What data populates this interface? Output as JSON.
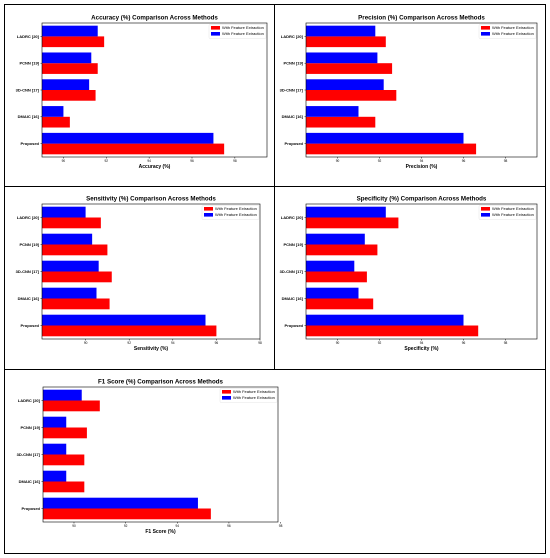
{
  "chart_data": [
    {
      "type": "bar",
      "orientation": "horizontal",
      "title": "Accuracy (%) Comparison Across Methods",
      "xlabel": "Accuracy (%)",
      "ylabel": "",
      "categories": [
        "LADRC [20]",
        "PCNN [19]",
        "3D-CNN [17]",
        "DMAIC [16]",
        "Proposed"
      ],
      "xticks": [
        "90",
        "92",
        "94",
        "96",
        "98"
      ],
      "xlim": [
        89,
        99.5
      ],
      "grid": false,
      "legend_position": "top-right",
      "series": [
        {
          "name": "With Feature Extraction",
          "color": "#ff0000",
          "values": [
            91.9,
            91.6,
            91.5,
            90.3,
            97.5
          ]
        },
        {
          "name": "With Feature Extraction",
          "color": "#0000ff",
          "values": [
            91.6,
            91.3,
            91.2,
            90.0,
            97.0
          ]
        }
      ]
    },
    {
      "type": "bar",
      "orientation": "horizontal",
      "title": "Precision (%) Comparison Across Methods",
      "xlabel": "Precision (%)",
      "ylabel": "",
      "categories": [
        "LADRC [20]",
        "PCNN [19]",
        "3D-CNN [17]",
        "DMAIC [16]",
        "Proposed"
      ],
      "xticks": [
        "90",
        "92",
        "94",
        "96",
        "98"
      ],
      "xlim": [
        88.5,
        99.5
      ],
      "grid": false,
      "legend_position": "top-right",
      "series": [
        {
          "name": "With Feature Extraction",
          "color": "#ff0000",
          "values": [
            92.3,
            92.6,
            92.8,
            91.8,
            96.6
          ]
        },
        {
          "name": "With Feature Extraction",
          "color": "#0000ff",
          "values": [
            91.8,
            91.9,
            92.2,
            91.0,
            96.0
          ]
        }
      ]
    },
    {
      "type": "bar",
      "orientation": "horizontal",
      "title": "Sensitivity (%) Comparison Across Methods",
      "xlabel": "Sensitivity (%)",
      "ylabel": "",
      "categories": [
        "LADRC [20]",
        "PCNN [19]",
        "3D-CNN [17]",
        "DMAIC [16]",
        "Proposed"
      ],
      "xticks": [
        "90",
        "92",
        "94",
        "96",
        "98"
      ],
      "xlim": [
        88,
        98
      ],
      "grid": false,
      "legend_position": "top-right",
      "series": [
        {
          "name": "With Feature Extraction",
          "color": "#ff0000",
          "values": [
            90.7,
            91.0,
            91.2,
            91.1,
            96.0
          ]
        },
        {
          "name": "With Feature Extraction",
          "color": "#0000ff",
          "values": [
            90.0,
            90.3,
            90.6,
            90.5,
            95.5
          ]
        }
      ]
    },
    {
      "type": "bar",
      "orientation": "horizontal",
      "title": "Specificity (%) Comparison Across Methods",
      "xlabel": "Specificity (%)",
      "ylabel": "",
      "categories": [
        "LADRC [20]",
        "PCNN [19]",
        "3D-CNN [17]",
        "DMAIC [16]",
        "Proposed"
      ],
      "xticks": [
        "90",
        "92",
        "94",
        "96",
        "98"
      ],
      "xlim": [
        88.5,
        99.5
      ],
      "grid": false,
      "legend_position": "top-right",
      "series": [
        {
          "name": "With Feature Extraction",
          "color": "#ff0000",
          "values": [
            92.9,
            91.9,
            91.4,
            91.7,
            96.7
          ]
        },
        {
          "name": "With Feature Extraction",
          "color": "#0000ff",
          "values": [
            92.3,
            91.3,
            90.8,
            91.0,
            96.0
          ]
        }
      ]
    },
    {
      "type": "bar",
      "orientation": "horizontal",
      "title": "F1 Score (%) Comparison Across Methods",
      "xlabel": "F1 Score (%)",
      "ylabel": "",
      "categories": [
        "LADRC [20]",
        "PCNN [19]",
        "3D-CNN [17]",
        "DMAIC [16]",
        "Proposed"
      ],
      "xticks": [
        "90",
        "92",
        "94",
        "96",
        "98"
      ],
      "xlim": [
        88.8,
        97.9
      ],
      "grid": false,
      "legend_position": "top-right",
      "series": [
        {
          "name": "With Feature Extraction",
          "color": "#ff0000",
          "values": [
            91.0,
            90.5,
            90.4,
            90.4,
            95.3
          ]
        },
        {
          "name": "With Feature Extraction",
          "color": "#0000ff",
          "values": [
            90.3,
            89.7,
            89.7,
            89.7,
            94.8
          ]
        }
      ]
    }
  ]
}
